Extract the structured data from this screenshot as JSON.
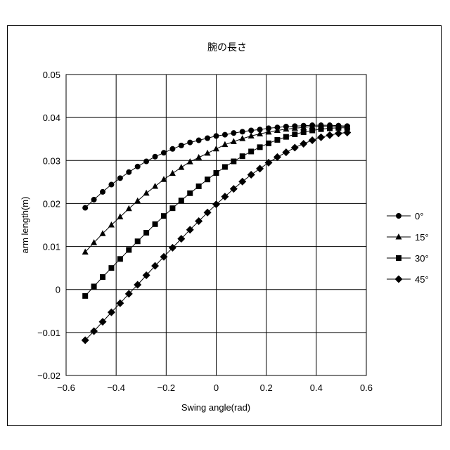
{
  "chart_data": {
    "type": "line",
    "title": "腕の長さ",
    "xlabel": "Swing angle(rad)",
    "ylabel": "arm length(m)",
    "xlim": [
      -0.6,
      0.6
    ],
    "ylim": [
      -0.02,
      0.05
    ],
    "xticks": [
      -0.6,
      -0.4,
      -0.2,
      0,
      0.2,
      0.4,
      0.6
    ],
    "xtick_labels": [
      "−0.6",
      "−0.4",
      "−0.2",
      "0",
      "0.2",
      "0.4",
      "0.6"
    ],
    "yticks": [
      -0.02,
      -0.01,
      0,
      0.01,
      0.02,
      0.03,
      0.04,
      0.05
    ],
    "ytick_labels": [
      "−0.02",
      "−0.01",
      "0",
      "0.01",
      "0.02",
      "0.03",
      "0.04",
      "0.05"
    ],
    "grid": true,
    "legend_position": "right",
    "x": [
      -0.5236,
      -0.4887,
      -0.4538,
      -0.4189,
      -0.384,
      -0.3491,
      -0.3142,
      -0.2793,
      -0.2443,
      -0.2094,
      -0.1745,
      -0.1396,
      -0.1047,
      -0.0698,
      -0.0349,
      0.0,
      0.0349,
      0.0698,
      0.1047,
      0.1396,
      0.1745,
      0.2094,
      0.2443,
      0.2793,
      0.3142,
      0.3491,
      0.384,
      0.4189,
      0.4538,
      0.4887,
      0.5236
    ],
    "series": [
      {
        "name": "0°",
        "marker": "circle",
        "values": [
          0.019,
          0.0209,
          0.0227,
          0.0244,
          0.0259,
          0.0273,
          0.0286,
          0.0298,
          0.0309,
          0.0318,
          0.0327,
          0.0335,
          0.0342,
          0.0347,
          0.0352,
          0.0357,
          0.036,
          0.0364,
          0.0367,
          0.037,
          0.0372,
          0.0375,
          0.0377,
          0.0379,
          0.038,
          0.0381,
          0.0382,
          0.0382,
          0.0382,
          0.0381,
          0.038
        ]
      },
      {
        "name": "15°",
        "marker": "triangle",
        "values": [
          0.0087,
          0.0109,
          0.013,
          0.015,
          0.0169,
          0.0188,
          0.0206,
          0.0224,
          0.024,
          0.0256,
          0.027,
          0.0284,
          0.0297,
          0.0307,
          0.0317,
          0.0327,
          0.0337,
          0.0344,
          0.0351,
          0.0357,
          0.0362,
          0.0366,
          0.037,
          0.0373,
          0.0375,
          0.0377,
          0.0379,
          0.038,
          0.038,
          0.038,
          0.0379
        ]
      },
      {
        "name": "30°",
        "marker": "square",
        "values": [
          -0.0015,
          0.0007,
          0.0029,
          0.005,
          0.0071,
          0.0092,
          0.0112,
          0.0132,
          0.0152,
          0.0171,
          0.0189,
          0.0207,
          0.0224,
          0.024,
          0.0256,
          0.0271,
          0.0285,
          0.0298,
          0.031,
          0.0321,
          0.0331,
          0.034,
          0.0348,
          0.0355,
          0.0361,
          0.0366,
          0.037,
          0.0373,
          0.0375,
          0.0376,
          0.0376
        ]
      },
      {
        "name": "45°",
        "marker": "diamond",
        "values": [
          -0.0118,
          -0.0097,
          -0.0075,
          -0.0053,
          -0.0032,
          -0.001,
          0.0011,
          0.0033,
          0.0055,
          0.0076,
          0.0097,
          0.0118,
          0.0139,
          0.0159,
          0.0179,
          0.0198,
          0.0216,
          0.0234,
          0.0251,
          0.0267,
          0.0281,
          0.0295,
          0.0308,
          0.0319,
          0.033,
          0.0339,
          0.0347,
          0.0354,
          0.0359,
          0.0363,
          0.0365
        ]
      }
    ]
  }
}
